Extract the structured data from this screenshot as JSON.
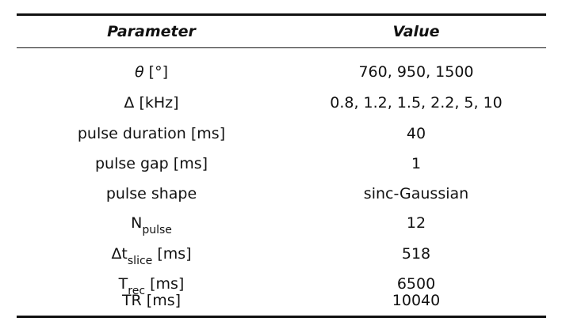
{
  "table": {
    "headers": {
      "parameter": "Parameter",
      "value": "Value"
    },
    "rows": [
      {
        "parameter": {
          "main": "θ",
          "sub": "",
          "unit": " [°]"
        },
        "value": "760, 950, 1500"
      },
      {
        "parameter": {
          "main": "Δ",
          "sub": "",
          "unit": " [kHz]"
        },
        "value": "0.8, 1.2, 1.5, 2.2, 5, 10"
      },
      {
        "parameter": {
          "main": "pulse duration",
          "sub": "",
          "unit": " [ms]"
        },
        "value": "40"
      },
      {
        "parameter": {
          "main": "pulse gap",
          "sub": "",
          "unit": " [ms]"
        },
        "value": "1"
      },
      {
        "parameter": {
          "main": "pulse shape",
          "sub": "",
          "unit": ""
        },
        "value": "sinc-Gaussian"
      },
      {
        "parameter": {
          "main": "N",
          "sub": "pulse",
          "unit": ""
        },
        "value": "12"
      },
      {
        "parameter": {
          "main": "Δt",
          "sub": "slice",
          "unit": " [ms]"
        },
        "value": "518"
      },
      {
        "parameter": {
          "main": "T",
          "sub": "rec",
          "unit": " [ms]"
        },
        "value": "6500"
      },
      {
        "parameter": {
          "main": "TR",
          "sub": "",
          "unit": " [ms]"
        },
        "value": "10040"
      }
    ]
  }
}
